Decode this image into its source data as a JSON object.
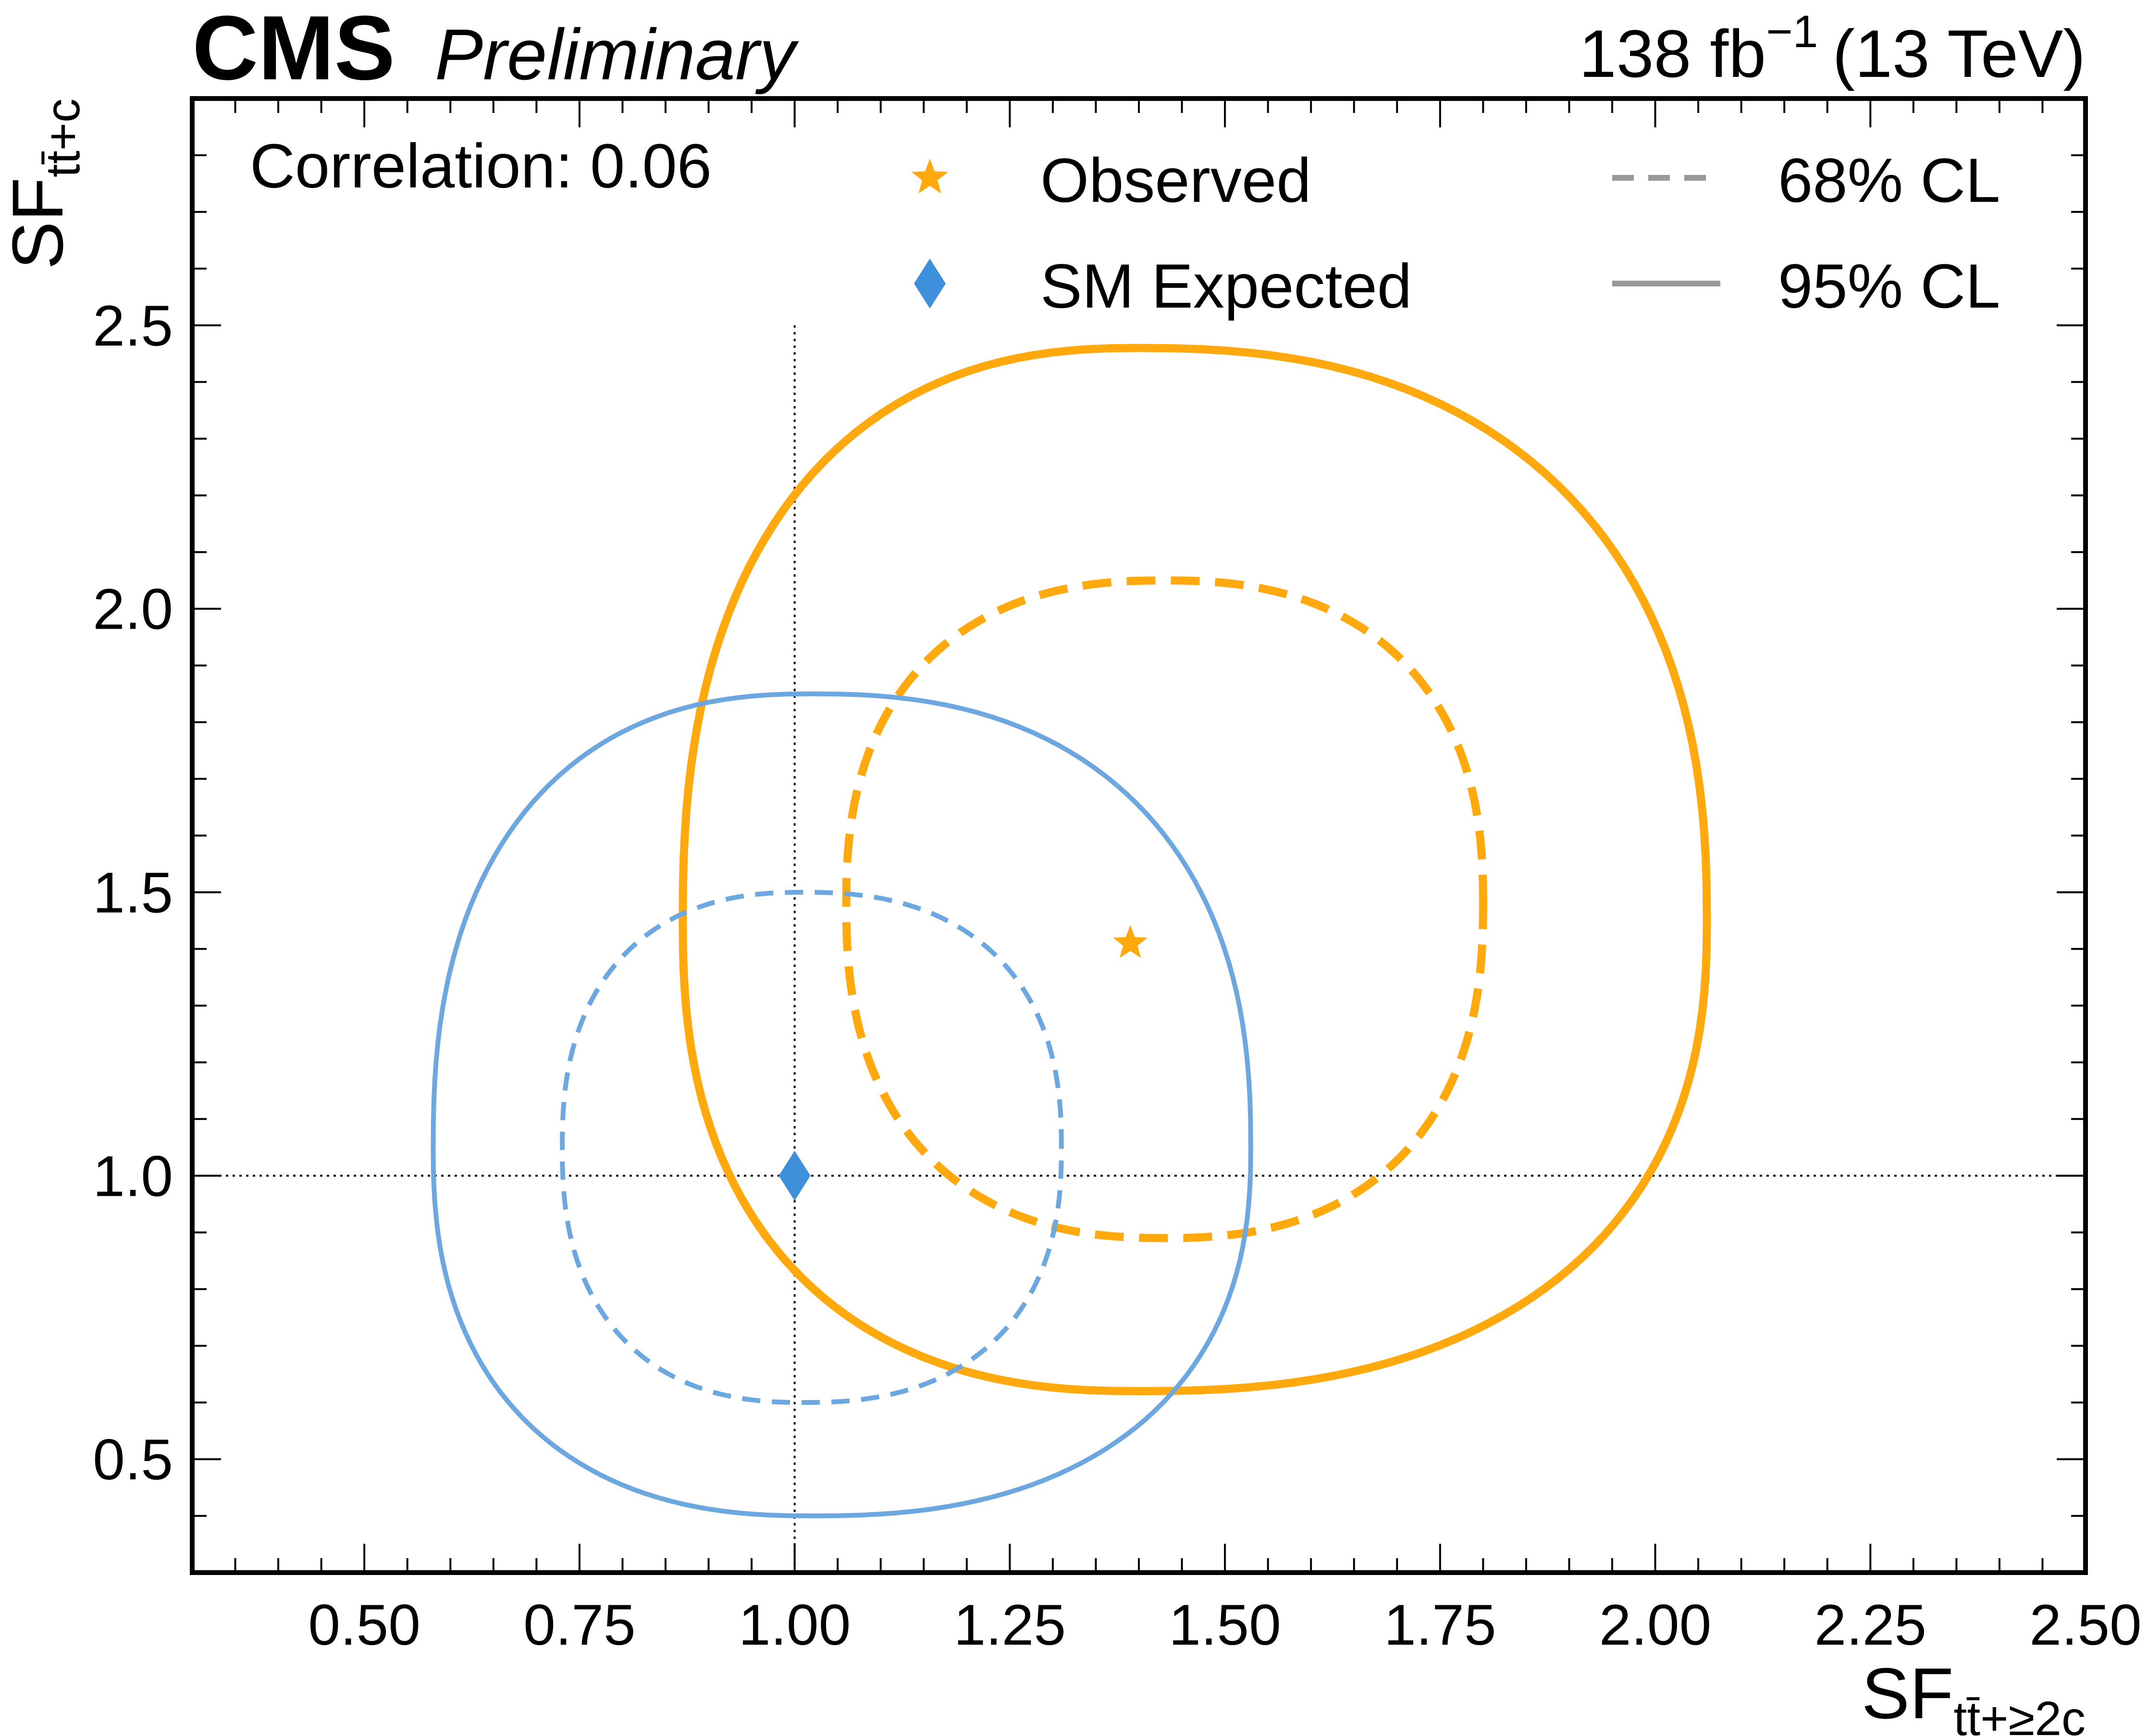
{
  "header": {
    "experiment": "CMS",
    "status": "Preliminary",
    "lumi_value": "138 fb",
    "lumi_exponent": "−1",
    "energy": "(13 TeV)"
  },
  "correlation_label": "Correlation: 0.06",
  "colors": {
    "observed": "#FFA90E",
    "expected": "#6CA8DF",
    "expected_marker": "#3F90DA",
    "legend_line": "#999999",
    "axis": "#000000"
  },
  "legend": {
    "observed": {
      "label": "Observed",
      "marker": "star-icon"
    },
    "expected": {
      "label": "SM Expected",
      "marker": "diamond-icon"
    },
    "cl68": {
      "label": "68% CL",
      "style": "dashed"
    },
    "cl95": {
      "label": "95% CL",
      "style": "solid"
    }
  },
  "chart_data": {
    "type": "contour",
    "xlabel": {
      "main": "SF",
      "sub": "tt̄+≥2c"
    },
    "ylabel": {
      "main": "SF",
      "sub": "tt̄+c"
    },
    "xlim": [
      0.3,
      2.5
    ],
    "ylim": [
      0.3,
      2.9
    ],
    "xticks": [
      0.5,
      0.75,
      1.0,
      1.25,
      1.5,
      1.75,
      2.0,
      2.25,
      2.5
    ],
    "xtick_labels": [
      "0.50",
      "0.75",
      "1.00",
      "1.25",
      "1.50",
      "1.75",
      "2.00",
      "2.25",
      "2.50"
    ],
    "yticks": [
      0.5,
      1.0,
      1.5,
      2.0,
      2.5
    ],
    "ytick_labels": [
      "0.5",
      "1.0",
      "1.5",
      "2.0",
      "2.5"
    ],
    "reference_lines": {
      "x": 1.0,
      "y": 1.0,
      "style": "dotted",
      "range_max": 2.5
    },
    "best_fit_observed": {
      "x": 1.39,
      "y": 1.41
    },
    "sm_expected": {
      "x": 1.0,
      "y": 1.0
    },
    "contours": [
      {
        "name": "Observed",
        "cl": "95% CL",
        "style": "solid",
        "center": [
          1.4,
          1.45
        ],
        "x_range": [
          0.87,
          2.06
        ],
        "y_range": [
          0.62,
          2.46
        ]
      },
      {
        "name": "Observed",
        "cl": "68% CL",
        "style": "dashed",
        "center": [
          1.43,
          1.48
        ],
        "x_range": [
          1.06,
          1.8
        ],
        "y_range": [
          0.89,
          2.05
        ]
      },
      {
        "name": "SM Expected",
        "cl": "95% CL",
        "style": "solid",
        "center": [
          1.02,
          1.05
        ],
        "x_range": [
          0.58,
          1.53
        ],
        "y_range": [
          0.4,
          1.85
        ]
      },
      {
        "name": "SM Expected",
        "cl": "68% CL",
        "style": "dashed",
        "center": [
          1.01,
          1.05
        ],
        "x_range": [
          0.73,
          1.31
        ],
        "y_range": [
          0.6,
          1.5
        ]
      }
    ]
  }
}
